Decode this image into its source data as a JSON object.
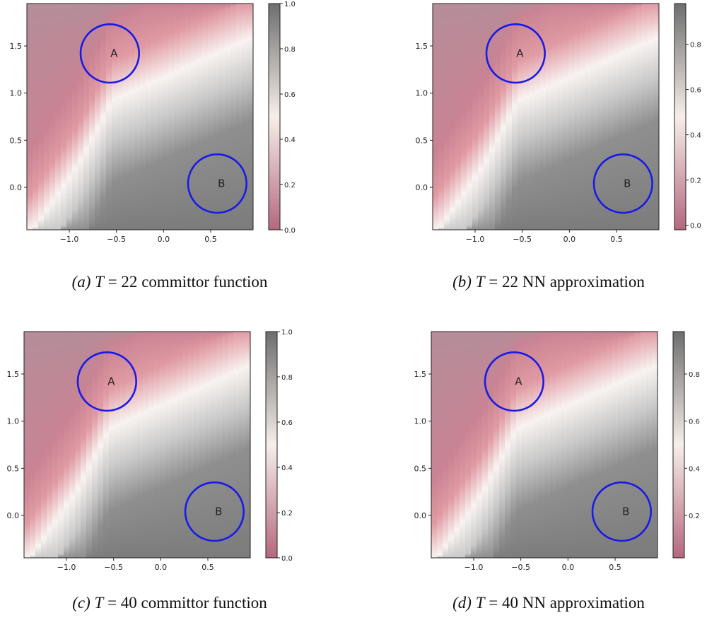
{
  "panels": [
    {
      "id": "a",
      "caption": {
        "label": "(a)",
        "symbol": "T",
        "eq": "= 22",
        "text": "committor function"
      },
      "chart_data": {
        "type": "heatmap",
        "title": "",
        "x_ticks": [
          -1.0,
          -0.5,
          0.0,
          0.5
        ],
        "y_ticks": [
          0.0,
          0.5,
          1.0,
          1.5
        ],
        "xlim": [
          -1.45,
          0.95
        ],
        "ylim": [
          -0.45,
          1.95
        ],
        "colorbar_ticks": [
          0.0,
          0.2,
          0.4,
          0.6,
          0.8,
          1.0
        ],
        "colorbar_range": [
          0.0,
          1.0
        ],
        "regions": [
          {
            "label": "A",
            "cx": -0.57,
            "cy": 1.42,
            "r": 0.31
          },
          {
            "label": "B",
            "cx": 0.57,
            "cy": 0.04,
            "r": 0.31
          }
        ],
        "colormap": [
          "#b4687e",
          "#f6eee9",
          "#7e7e7e"
        ]
      }
    },
    {
      "id": "b",
      "caption": {
        "label": "(b)",
        "symbol": "T",
        "eq": "= 22",
        "text": "NN approximation"
      },
      "chart_data": {
        "type": "heatmap",
        "title": "",
        "x_ticks": [
          -1.0,
          -0.5,
          0.0,
          0.5
        ],
        "y_ticks": [
          0.0,
          0.5,
          1.0,
          1.5
        ],
        "xlim": [
          -1.45,
          0.95
        ],
        "ylim": [
          -0.45,
          1.95
        ],
        "colorbar_ticks": [
          0.0,
          0.2,
          0.4,
          0.6,
          0.8
        ],
        "colorbar_range": [
          -0.02,
          0.98
        ],
        "regions": [
          {
            "label": "A",
            "cx": -0.57,
            "cy": 1.42,
            "r": 0.31
          },
          {
            "label": "B",
            "cx": 0.57,
            "cy": 0.04,
            "r": 0.31
          }
        ],
        "colormap": [
          "#b4687e",
          "#f6eee9",
          "#7e7e7e"
        ]
      }
    },
    {
      "id": "c",
      "caption": {
        "label": "(c)",
        "symbol": "T",
        "eq": "= 40",
        "text": "committor function"
      },
      "chart_data": {
        "type": "heatmap",
        "title": "",
        "x_ticks": [
          -1.0,
          -0.5,
          0.0,
          0.5
        ],
        "y_ticks": [
          0.0,
          0.5,
          1.0,
          1.5
        ],
        "xlim": [
          -1.45,
          0.95
        ],
        "ylim": [
          -0.45,
          1.95
        ],
        "colorbar_ticks": [
          0.0,
          0.2,
          0.4,
          0.6,
          0.8,
          1.0
        ],
        "colorbar_range": [
          0.0,
          1.0
        ],
        "regions": [
          {
            "label": "A",
            "cx": -0.57,
            "cy": 1.42,
            "r": 0.31
          },
          {
            "label": "B",
            "cx": 0.57,
            "cy": 0.04,
            "r": 0.31
          }
        ],
        "colormap": [
          "#b4687e",
          "#f6eee9",
          "#7e7e7e"
        ]
      }
    },
    {
      "id": "d",
      "caption": {
        "label": "(d)",
        "symbol": "T",
        "eq": "= 40",
        "text": "NN approximation"
      },
      "chart_data": {
        "type": "heatmap",
        "title": "",
        "x_ticks": [
          -1.0,
          -0.5,
          0.0,
          0.5
        ],
        "y_ticks": [
          0.0,
          0.5,
          1.0,
          1.5
        ],
        "xlim": [
          -1.45,
          0.95
        ],
        "ylim": [
          -0.45,
          1.95
        ],
        "colorbar_ticks": [
          0.2,
          0.4,
          0.6,
          0.8
        ],
        "colorbar_range": [
          0.02,
          0.98
        ],
        "regions": [
          {
            "label": "A",
            "cx": -0.57,
            "cy": 1.42,
            "r": 0.31
          },
          {
            "label": "B",
            "cx": 0.57,
            "cy": 0.04,
            "r": 0.31
          }
        ],
        "colormap": [
          "#b4687e",
          "#f6eee9",
          "#7e7e7e"
        ]
      }
    }
  ]
}
